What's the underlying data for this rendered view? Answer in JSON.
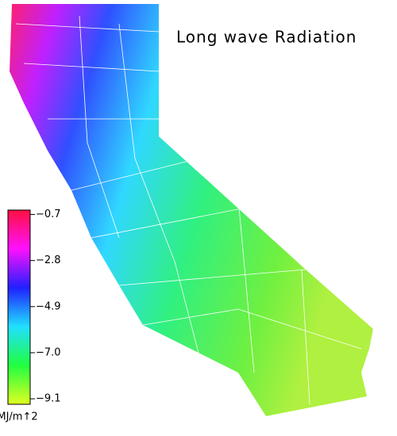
{
  "title": "Long wave Radiation",
  "colorbar": {
    "lim": [
      -9.35,
      -0.5
    ],
    "colors": [
      "#ff1040",
      "#ff10ff",
      "#2020ff",
      "#20e0ff",
      "#20ff40",
      "#e0ff20"
    ],
    "ticks": [
      {
        "value": -0.7,
        "label": "−0.7"
      },
      {
        "value": -2.8,
        "label": "−2.8"
      },
      {
        "value": -4.9,
        "label": "−4.9"
      },
      {
        "value": -7.0,
        "label": "−7.0"
      },
      {
        "value": -9.1,
        "label": "−9.1"
      }
    ],
    "unit": "MJ/m↑2"
  }
}
